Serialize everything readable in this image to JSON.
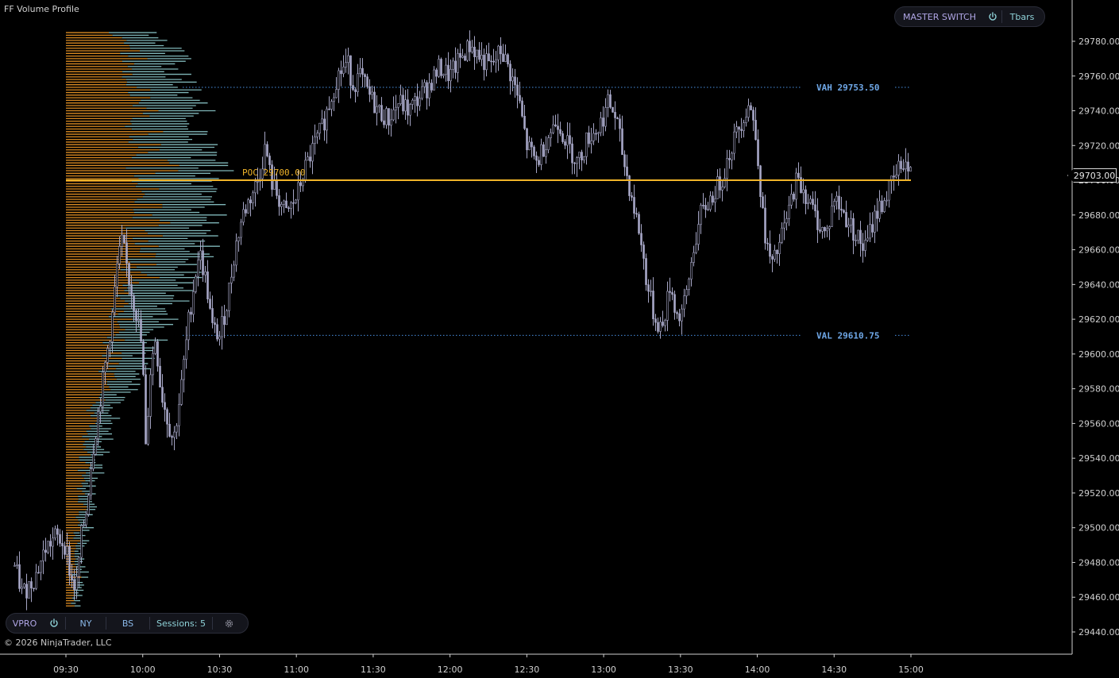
{
  "window": {
    "title": "FF Volume Profile",
    "copyright": "© 2026 NinjaTrader, LLC"
  },
  "top_toolbar": {
    "master_switch_label": "MASTER SWITCH",
    "power_icon": "power-icon",
    "tbars_label": "Tbars"
  },
  "bottom_toolbar": {
    "vpro_label": "VPRO",
    "power_icon": "power-icon",
    "ny_label": "NY",
    "bs_label": "BS",
    "sessions_label": "Sessions: 5",
    "settings_icon": "gear-icon"
  },
  "levels": {
    "poc": {
      "label": "POC 29700.00",
      "price": 29700.0
    },
    "vah": {
      "label": "VAH 29753.50",
      "price": 29753.5
    },
    "val": {
      "label": "VAL 29610.75",
      "price": 29610.75
    }
  },
  "current_price": "29703.00",
  "colors": {
    "poc": "#f0b429",
    "levels": "#4a90e2",
    "profile_orange": "#d98a22",
    "profile_teal": "#7fb6b8",
    "candles": "#a8a8c8"
  },
  "chart_data": {
    "type": "candlestick",
    "y_axis": {
      "range": [
        29430,
        29790
      ],
      "ticks": [
        "29440.00",
        "29460.00",
        "29480.00",
        "29500.00",
        "29520.00",
        "29540.00",
        "29560.00",
        "29580.00",
        "29600.00",
        "29620.00",
        "29640.00",
        "29660.00",
        "29680.00",
        "29700.00",
        "29720.00",
        "29740.00",
        "29760.00",
        "29780.00"
      ]
    },
    "x_axis": {
      "ticks": [
        "09:30",
        "10:00",
        "10:30",
        "11:00",
        "11:30",
        "12:00",
        "12:30",
        "13:00",
        "13:30",
        "14:00",
        "14:30",
        "15:00"
      ]
    },
    "price_path": [
      [
        "09:10",
        29478
      ],
      [
        "09:13",
        29462
      ],
      [
        "09:18",
        29472
      ],
      [
        "09:22",
        29488
      ],
      [
        "09:26",
        29495
      ],
      [
        "09:30",
        29490
      ],
      [
        "09:32",
        29470
      ],
      [
        "09:34",
        29465
      ],
      [
        "09:36",
        29495
      ],
      [
        "09:38",
        29510
      ],
      [
        "09:40",
        29540
      ],
      [
        "09:44",
        29580
      ],
      [
        "09:48",
        29620
      ],
      [
        "09:50",
        29650
      ],
      [
        "09:52",
        29665
      ],
      [
        "09:55",
        29640
      ],
      [
        "09:58",
        29620
      ],
      [
        "10:00",
        29600
      ],
      [
        "10:01",
        29540
      ],
      [
        "10:03",
        29590
      ],
      [
        "10:05",
        29610
      ],
      [
        "10:07",
        29580
      ],
      [
        "10:10",
        29560
      ],
      [
        "10:12",
        29550
      ],
      [
        "10:15",
        29580
      ],
      [
        "10:18",
        29620
      ],
      [
        "10:20",
        29640
      ],
      [
        "10:22",
        29660
      ],
      [
        "10:25",
        29640
      ],
      [
        "10:27",
        29615
      ],
      [
        "10:30",
        29610
      ],
      [
        "10:33",
        29630
      ],
      [
        "10:36",
        29660
      ],
      [
        "10:39",
        29680
      ],
      [
        "10:42",
        29690
      ],
      [
        "10:45",
        29700
      ],
      [
        "10:48",
        29720
      ],
      [
        "10:50",
        29700
      ],
      [
        "10:53",
        29690
      ],
      [
        "10:56",
        29680
      ],
      [
        "11:00",
        29690
      ],
      [
        "11:03",
        29705
      ],
      [
        "11:07",
        29720
      ],
      [
        "11:10",
        29730
      ],
      [
        "11:13",
        29745
      ],
      [
        "11:16",
        29760
      ],
      [
        "11:20",
        29768
      ],
      [
        "11:22",
        29755
      ],
      [
        "11:25",
        29760
      ],
      [
        "11:28",
        29750
      ],
      [
        "11:32",
        29740
      ],
      [
        "11:36",
        29735
      ],
      [
        "11:40",
        29745
      ],
      [
        "11:44",
        29740
      ],
      [
        "11:48",
        29748
      ],
      [
        "11:52",
        29755
      ],
      [
        "11:56",
        29765
      ],
      [
        "12:00",
        29760
      ],
      [
        "12:04",
        29770
      ],
      [
        "12:08",
        29778
      ],
      [
        "12:12",
        29770
      ],
      [
        "12:16",
        29765
      ],
      [
        "12:20",
        29775
      ],
      [
        "12:24",
        29760
      ],
      [
        "12:27",
        29745
      ],
      [
        "12:30",
        29720
      ],
      [
        "12:34",
        29710
      ],
      [
        "12:38",
        29725
      ],
      [
        "12:42",
        29735
      ],
      [
        "12:46",
        29720
      ],
      [
        "12:50",
        29710
      ],
      [
        "12:54",
        29725
      ],
      [
        "12:58",
        29730
      ],
      [
        "13:02",
        29745
      ],
      [
        "13:05",
        29735
      ],
      [
        "13:08",
        29710
      ],
      [
        "13:11",
        29690
      ],
      [
        "13:14",
        29670
      ],
      [
        "13:17",
        29640
      ],
      [
        "13:20",
        29620
      ],
      [
        "13:23",
        29615
      ],
      [
        "13:26",
        29640
      ],
      [
        "13:29",
        29620
      ],
      [
        "13:32",
        29630
      ],
      [
        "13:35",
        29660
      ],
      [
        "13:38",
        29680
      ],
      [
        "13:42",
        29690
      ],
      [
        "13:46",
        29700
      ],
      [
        "13:50",
        29720
      ],
      [
        "13:54",
        29735
      ],
      [
        "13:57",
        29745
      ],
      [
        "14:00",
        29720
      ],
      [
        "14:02",
        29680
      ],
      [
        "14:04",
        29660
      ],
      [
        "14:06",
        29650
      ],
      [
        "14:09",
        29665
      ],
      [
        "14:12",
        29680
      ],
      [
        "14:15",
        29700
      ],
      [
        "14:18",
        29695
      ],
      [
        "14:21",
        29685
      ],
      [
        "14:24",
        29675
      ],
      [
        "14:27",
        29668
      ],
      [
        "14:30",
        29690
      ],
      [
        "14:34",
        29680
      ],
      [
        "14:38",
        29670
      ],
      [
        "14:42",
        29660
      ],
      [
        "14:46",
        29680
      ],
      [
        "14:50",
        29690
      ],
      [
        "14:54",
        29702
      ],
      [
        "14:57",
        29712
      ],
      [
        "15:00",
        29703
      ]
    ],
    "volume_profile": {
      "type": "horizontal-histogram",
      "price_range": [
        29455,
        29785
      ],
      "peak_price": 29700
    }
  }
}
